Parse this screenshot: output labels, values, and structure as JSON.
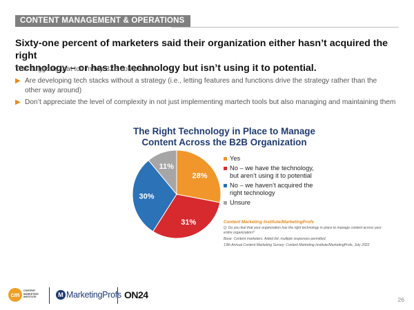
{
  "section": {
    "label": "CONTENT MANAGEMENT & OPERATIONS"
  },
  "headline": {
    "line1": "Sixty-one percent of marketers said their organization either hasn’t acquired the right",
    "line2": "technology – or has the technology but isn’t using it to potential."
  },
  "intro": "This suggests that too many B2B companies:",
  "bullets": [
    {
      "line1": "Are developing tech stacks without a strategy (i.e., letting features and functions drive the strategy rather than the",
      "line2": "other way around)"
    },
    {
      "line1": "Don’t appreciate the level of complexity in not just implementing martech tools but also managing and maintaining them",
      "line2": ""
    }
  ],
  "chart_data": {
    "type": "pie",
    "title_line1": "The Right Technology in Place to Manage",
    "title_line2": "Content Across the B2B Organization",
    "slices": [
      {
        "label": "Yes",
        "value": 28,
        "display": "28%",
        "color": "#f0962a",
        "text_color": "#ffffff"
      },
      {
        "label": "No – we have the technology, but aren’t using it to potential",
        "label_line1": "No – we have the technology,",
        "label_line2": "but aren’t using it to potential",
        "value": 31,
        "display": "31%",
        "color": "#d62a2e",
        "text_color": "#ffffff"
      },
      {
        "label": "No – we haven’t acquired the right technology",
        "label_line1": "No – we haven’t acquired the",
        "label_line2": "right technology",
        "value": 30,
        "display": "30%",
        "color": "#2b72b7",
        "text_color": "#ffffff"
      },
      {
        "label": "Unsure",
        "value": 11,
        "display": "11%",
        "color": "#a6a6a6",
        "text_color": "#ffffff"
      }
    ],
    "legend_position": "right"
  },
  "source": {
    "title": "Content Marketing Institute/MarketingProfs",
    "question": "Q: Do you feel that your organization has the right technology in place to manage content across your entire organization?",
    "base": "Base: Content marketers. Aided list; multiple responses permitted.",
    "survey": "13th Annual Content Marketing Survey: Content Marketing Institute/MarketingProfs, July 2022"
  },
  "footer": {
    "cmi_badge": "cm",
    "cmi_text": "CONTENT\nMARKETING\nINSTITUTE",
    "marketingprofs_icon": "M",
    "marketingprofs_text": "MarketingProfs",
    "on24_text": "ON24",
    "page_number": "26"
  },
  "colors": {
    "accent": "#e68a1e",
    "title_blue": "#1f3b73"
  }
}
